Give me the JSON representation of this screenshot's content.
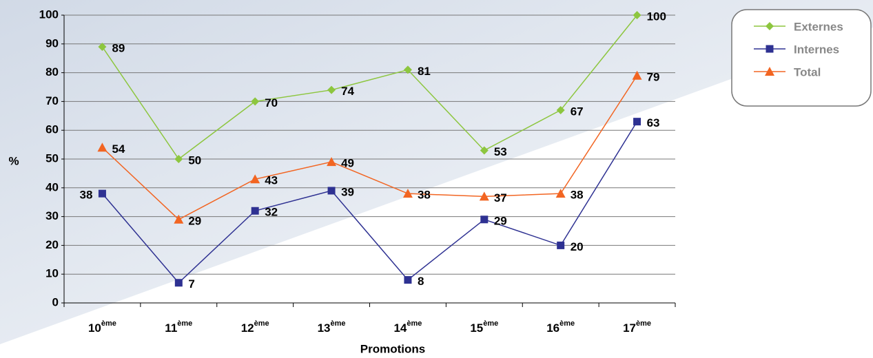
{
  "chart_data": {
    "type": "line",
    "categories": [
      "10ème",
      "11ème",
      "12ème",
      "13ème",
      "14ème",
      "15ème",
      "16ème",
      "17ème"
    ],
    "series": [
      {
        "name": "Externes",
        "color": "#8dc63f",
        "marker": "diamond",
        "values": [
          89,
          50,
          70,
          74,
          81,
          53,
          67,
          100
        ]
      },
      {
        "name": "Internes",
        "color": "#2e3192",
        "marker": "square",
        "values": [
          38,
          7,
          32,
          39,
          8,
          29,
          20,
          63
        ]
      },
      {
        "name": "Total",
        "color": "#f26522",
        "marker": "triangle",
        "values": [
          54,
          29,
          43,
          49,
          38,
          37,
          38,
          79
        ]
      }
    ],
    "ylim": [
      0,
      100
    ],
    "yticks": [
      0,
      10,
      20,
      30,
      40,
      50,
      60,
      70,
      80,
      90,
      100
    ],
    "y_label": "%",
    "x_label": "Promotions",
    "grid": true,
    "legend": "top-right"
  }
}
